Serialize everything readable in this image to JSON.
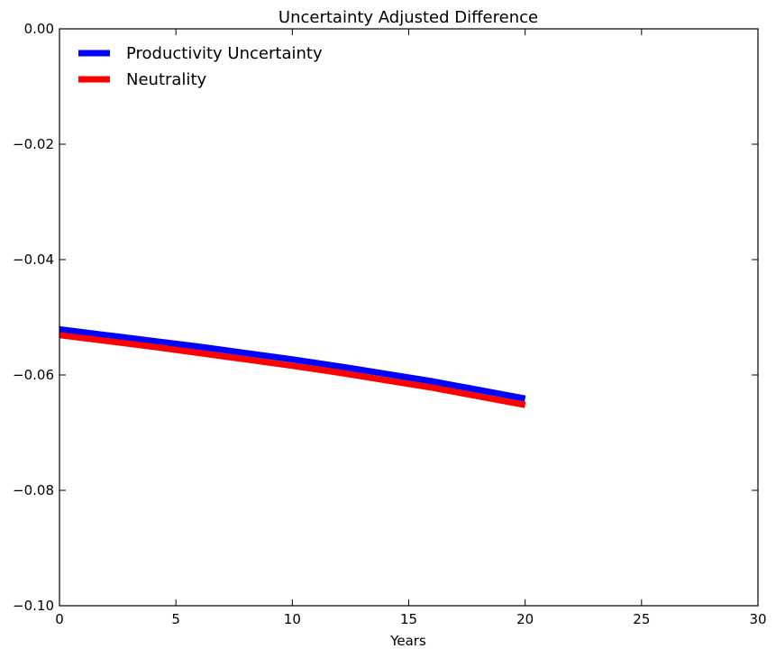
{
  "chart_data": {
    "type": "line",
    "title": "Uncertainty Adjusted Difference",
    "xlabel": "Years",
    "ylabel": "",
    "xlim": [
      0,
      30
    ],
    "ylim": [
      -0.1,
      0.0
    ],
    "xticks": [
      0,
      5,
      10,
      15,
      20,
      25,
      30
    ],
    "xtick_labels": [
      "0",
      "5",
      "10",
      "15",
      "20",
      "25",
      "30"
    ],
    "yticks": [
      0.0,
      -0.02,
      -0.04,
      -0.06,
      -0.08,
      -0.1
    ],
    "ytick_labels": [
      "0.00",
      "−0.02",
      "−0.04",
      "−0.06",
      "−0.08",
      "−0.10"
    ],
    "grid": false,
    "legend_position": "top-left",
    "series": [
      {
        "name": "Productivity Uncertainty",
        "color": "#0000ff",
        "x": [
          0,
          2,
          4,
          6,
          8,
          10,
          12,
          14,
          16,
          18,
          20
        ],
        "y": [
          -0.0521,
          -0.0531,
          -0.0541,
          -0.0551,
          -0.0562,
          -0.0573,
          -0.0585,
          -0.0598,
          -0.0611,
          -0.0626,
          -0.0641
        ]
      },
      {
        "name": "Neutrality",
        "color": "#ff0000",
        "x": [
          0,
          2,
          4,
          6,
          8,
          10,
          12,
          14,
          16,
          18,
          20
        ],
        "y": [
          -0.0531,
          -0.0541,
          -0.0551,
          -0.0562,
          -0.0573,
          -0.0584,
          -0.0596,
          -0.0609,
          -0.0622,
          -0.0637,
          -0.0652
        ]
      }
    ]
  }
}
